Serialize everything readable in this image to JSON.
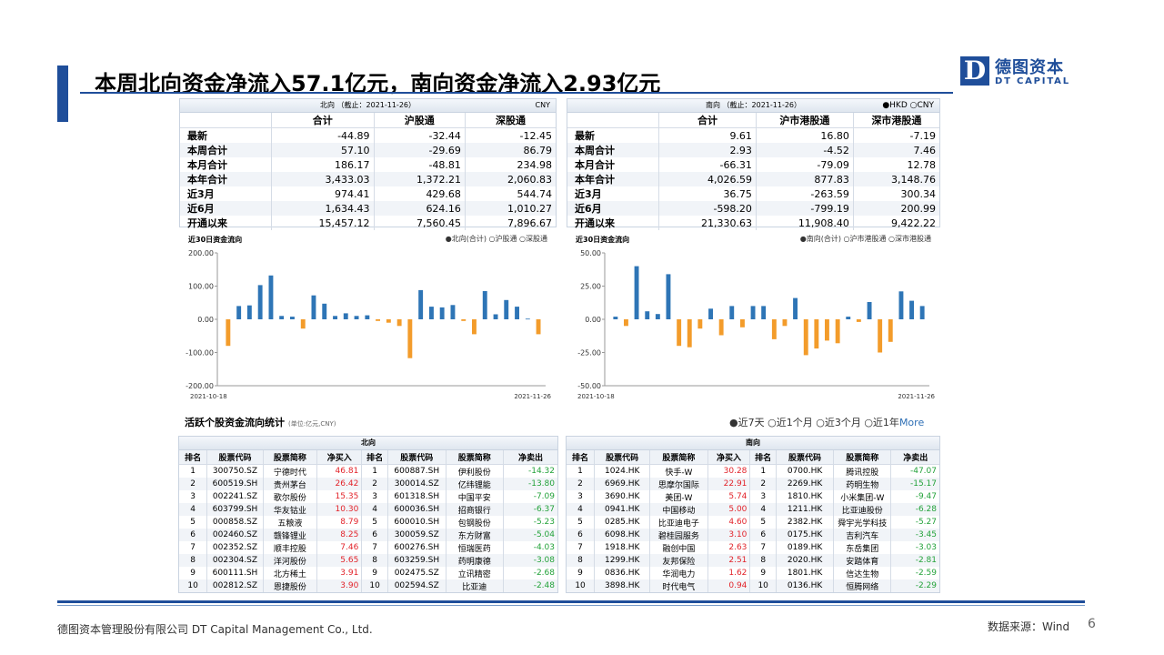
{
  "title": "本周北向资金净流入57.1亿元，南向资金净流入2.93亿元",
  "logo": {
    "mark": "D",
    "cn": "德图资本",
    "en": "DT CAPITAL"
  },
  "north_summary": {
    "header": "北向 （截止：2021-11-26）",
    "unit": "CNY",
    "columns": [
      "合计",
      "沪股通",
      "深股通"
    ],
    "rows": [
      {
        "label": "最新",
        "values": [
          "-44.89",
          "-32.44",
          "-12.45"
        ]
      },
      {
        "label": "本周合计",
        "values": [
          "57.10",
          "-29.69",
          "86.79"
        ]
      },
      {
        "label": "本月合计",
        "values": [
          "186.17",
          "-48.81",
          "234.98"
        ]
      },
      {
        "label": "本年合计",
        "values": [
          "3,433.03",
          "1,372.21",
          "2,060.83"
        ]
      },
      {
        "label": "近3月",
        "values": [
          "974.41",
          "429.68",
          "544.74"
        ]
      },
      {
        "label": "近6月",
        "values": [
          "1,634.43",
          "624.16",
          "1,010.27"
        ]
      },
      {
        "label": "开通以来",
        "values": [
          "15,457.12",
          "7,560.45",
          "7,896.67"
        ]
      }
    ]
  },
  "south_summary": {
    "header": "南向 （截止：2021-11-26）",
    "currency_options": "●HKD ○CNY",
    "columns": [
      "合计",
      "沪市港股通",
      "深市港股通"
    ],
    "rows": [
      {
        "label": "最新",
        "values": [
          "9.61",
          "16.80",
          "-7.19"
        ]
      },
      {
        "label": "本周合计",
        "values": [
          "2.93",
          "-4.52",
          "7.46"
        ]
      },
      {
        "label": "本月合计",
        "values": [
          "-66.31",
          "-79.09",
          "12.78"
        ]
      },
      {
        "label": "本年合计",
        "values": [
          "4,026.59",
          "877.83",
          "3,148.76"
        ]
      },
      {
        "label": "近3月",
        "values": [
          "36.75",
          "-263.59",
          "300.34"
        ]
      },
      {
        "label": "近6月",
        "values": [
          "-598.20",
          "-799.19",
          "200.99"
        ]
      },
      {
        "label": "开通以来",
        "values": [
          "21,330.63",
          "11,908.40",
          "9,422.22"
        ]
      }
    ]
  },
  "north_chart_labels": {
    "title": "近30日资金流向",
    "legend": "●北向(合计) ○沪股通 ○深股通"
  },
  "south_chart_labels": {
    "title": "近30日资金流向",
    "legend": "●南向(合计) ○沪市港股通 ○深市港股通"
  },
  "chart_data": [
    {
      "type": "bar",
      "title": "近30日资金流向",
      "x_start": "2021-10-18",
      "x_end": "2021-11-26",
      "ylim": [
        -200,
        200
      ],
      "yticks": [
        "200.00",
        "100.00",
        "0.00",
        "-100.00",
        "-200.00"
      ],
      "values": [
        -80,
        40,
        42,
        103,
        132,
        10,
        8,
        -28,
        72,
        47,
        10,
        18,
        10,
        12,
        -5,
        -10,
        -20,
        -117,
        88,
        38,
        36,
        43,
        -5,
        -45,
        85,
        15,
        58,
        38,
        2,
        -45
      ],
      "positive_color": "#2e75b6",
      "negative_color": "#f39c2b"
    },
    {
      "type": "bar",
      "title": "近30日资金流向",
      "x_start": "2021-10-18",
      "x_end": "2021-11-26",
      "ylim": [
        -50,
        50
      ],
      "yticks": [
        "50.00",
        "25.00",
        "0.00",
        "-25.00",
        "-50.00"
      ],
      "values": [
        2,
        -5,
        40,
        6,
        4,
        34,
        -20,
        -21,
        -7,
        8,
        -12,
        10,
        -6,
        10,
        10,
        -15,
        -5,
        16,
        -27,
        -22,
        -16,
        -18,
        2,
        -2,
        13,
        -25,
        -17,
        21,
        14,
        10
      ],
      "positive_color": "#2e75b6",
      "negative_color": "#f39c2b"
    }
  ],
  "active_stocks": {
    "title": "活跃个股资金流向统计",
    "unit": "(单位:亿元,CNY)",
    "periods": [
      "●近7天",
      "○近1个月",
      "○近3个月",
      "○近1年"
    ],
    "more": "More"
  },
  "north_rank": {
    "header": "北向",
    "columns": [
      "排名",
      "股票代码",
      "股票简称",
      "净买入",
      "排名",
      "股票代码",
      "股票简称",
      "净卖出"
    ],
    "rows": [
      [
        "1",
        "300750.SZ",
        "宁德时代",
        "46.81",
        "1",
        "600887.SH",
        "伊利股份",
        "-14.32"
      ],
      [
        "2",
        "600519.SH",
        "贵州茅台",
        "26.42",
        "2",
        "300014.SZ",
        "亿纬锂能",
        "-13.80"
      ],
      [
        "3",
        "002241.SZ",
        "歌尔股份",
        "15.35",
        "3",
        "601318.SH",
        "中国平安",
        "-7.09"
      ],
      [
        "4",
        "603799.SH",
        "华友钴业",
        "10.30",
        "4",
        "600036.SH",
        "招商银行",
        "-6.37"
      ],
      [
        "5",
        "000858.SZ",
        "五粮液",
        "8.79",
        "5",
        "600010.SH",
        "包钢股份",
        "-5.23"
      ],
      [
        "6",
        "002460.SZ",
        "赣锋锂业",
        "8.25",
        "6",
        "300059.SZ",
        "东方财富",
        "-5.04"
      ],
      [
        "7",
        "002352.SZ",
        "顺丰控股",
        "7.46",
        "7",
        "600276.SH",
        "恒瑞医药",
        "-4.03"
      ],
      [
        "8",
        "002304.SZ",
        "洋河股份",
        "5.65",
        "8",
        "603259.SH",
        "药明康德",
        "-3.08"
      ],
      [
        "9",
        "600111.SH",
        "北方稀土",
        "3.91",
        "9",
        "002475.SZ",
        "立讯精密",
        "-2.68"
      ],
      [
        "10",
        "002812.SZ",
        "恩捷股份",
        "3.90",
        "10",
        "002594.SZ",
        "比亚迪",
        "-2.48"
      ]
    ]
  },
  "south_rank": {
    "header": "南向",
    "columns": [
      "排名",
      "股票代码",
      "股票简称",
      "净买入",
      "排名",
      "股票代码",
      "股票简称",
      "净卖出"
    ],
    "rows": [
      [
        "1",
        "1024.HK",
        "快手-W",
        "30.28",
        "1",
        "0700.HK",
        "腾讯控股",
        "-47.07"
      ],
      [
        "2",
        "6969.HK",
        "思摩尔国际",
        "22.91",
        "2",
        "2269.HK",
        "药明生物",
        "-15.17"
      ],
      [
        "3",
        "3690.HK",
        "美团-W",
        "5.74",
        "3",
        "1810.HK",
        "小米集团-W",
        "-9.47"
      ],
      [
        "4",
        "0941.HK",
        "中国移动",
        "5.00",
        "4",
        "1211.HK",
        "比亚迪股份",
        "-6.28"
      ],
      [
        "5",
        "0285.HK",
        "比亚迪电子",
        "4.60",
        "5",
        "2382.HK",
        "舜宇光学科技",
        "-5.27"
      ],
      [
        "6",
        "6098.HK",
        "碧桂园服务",
        "3.10",
        "6",
        "0175.HK",
        "吉利汽车",
        "-3.45"
      ],
      [
        "7",
        "1918.HK",
        "融创中国",
        "2.63",
        "7",
        "0189.HK",
        "东岳集团",
        "-3.03"
      ],
      [
        "8",
        "1299.HK",
        "友邦保险",
        "2.51",
        "8",
        "2020.HK",
        "安踏体育",
        "-2.81"
      ],
      [
        "9",
        "0836.HK",
        "华润电力",
        "1.62",
        "9",
        "1801.HK",
        "信达生物",
        "-2.59"
      ],
      [
        "10",
        "3898.HK",
        "时代电气",
        "0.94",
        "10",
        "0136.HK",
        "恒腾网络",
        "-2.29"
      ]
    ]
  },
  "footer": {
    "company": "德图资本管理股份有限公司  DT Capital Management  Co., Ltd.",
    "source": "数据来源：Wind",
    "page": "6"
  }
}
